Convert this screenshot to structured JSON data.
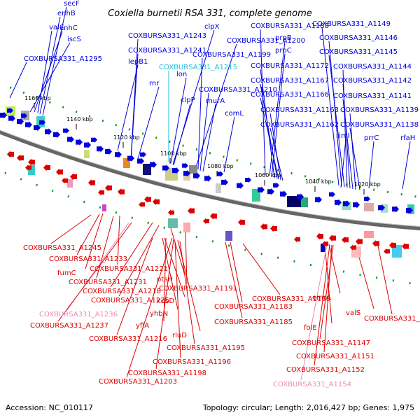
{
  "title": "Coxiella burnetii RSA 331, complete genome",
  "footer": {
    "accession": "Accession: NC_010117",
    "summary": "Topology: circular; Length: 2,016,427 bp; Genes: 1,975"
  },
  "colors": {
    "forward_strand": "#0000dd",
    "reverse_strand": "#dd0000",
    "pseudo_forward": "#22bbdd",
    "pseudo_reverse": "#ee88bb",
    "gc_marks": "#119911",
    "backbone": "#666666"
  },
  "scale_ticks": [
    "1160 kbp",
    "1140 kbp",
    "1120 kbp",
    "1100 kbp",
    "1080 kbp",
    "1060 kbp",
    "1040 kbp",
    "1020 kbp"
  ],
  "forward_labels": [
    "secF",
    "enhB",
    "valC",
    "enhC",
    "iscS",
    "COXBURSA331_A1295",
    "COXBURSA331_A1243",
    "COXBURSA331_A1241",
    "lepB1",
    "rnr",
    "COXBURSA331_A1215",
    "lon",
    "clpP",
    "clpX",
    "COXBURSA331_A1200",
    "COXBURSA331_A1199",
    "COXBURSA331_A1210",
    "murA",
    "comL",
    "COXBURSA331_A1188",
    "prpB",
    "prpC",
    "COXBURSA331_A1172",
    "COXBURSA331_A1167",
    "COXBURSA331_A1166",
    "COXBURSA331_A1163",
    "COXBURSA331_A1162",
    "COXBURSA331_A1149",
    "COXBURSA331_A1146",
    "COXBURSA331_A1145",
    "COXBURSA331_A1144",
    "COXBURSA331_A1142",
    "COXBURSA331_A1141",
    "COXBURSA331_A1139",
    "COXBURSA331_A1138",
    "rimI",
    "prrC",
    "rfaH"
  ],
  "reverse_labels": [
    "COXBURSA331_A1245",
    "COXBURSA331_A1233",
    "fumC",
    "COXBURSA331_A1221",
    "COXBURSA331_A1231",
    "ptsH",
    "COXBURSA331_A1218",
    "COXBURSA331_A1225",
    "COXBURSA331_A1191",
    "kdsD",
    "yhbN",
    "COXBURSA331_A1236",
    "COXBURSA331_A1237",
    "yfiA",
    "rluD",
    "COXBURSA331_A1216",
    "COXBURSA331_A1183",
    "COXBURSA331_A1185",
    "COXBURSA331_A1169",
    "COXBURSA331_A1195",
    "COXBURSA331_A1196",
    "COXBURSA331_A1198",
    "COXBURSA331_A1203",
    "emrA",
    "folE",
    "valS",
    "COXBURSA331_A1137",
    "COXBURSA331_A1147",
    "COXBURSA331_A1151",
    "COXBURSA331_A1152",
    "COXBURSA331_A1154"
  ]
}
